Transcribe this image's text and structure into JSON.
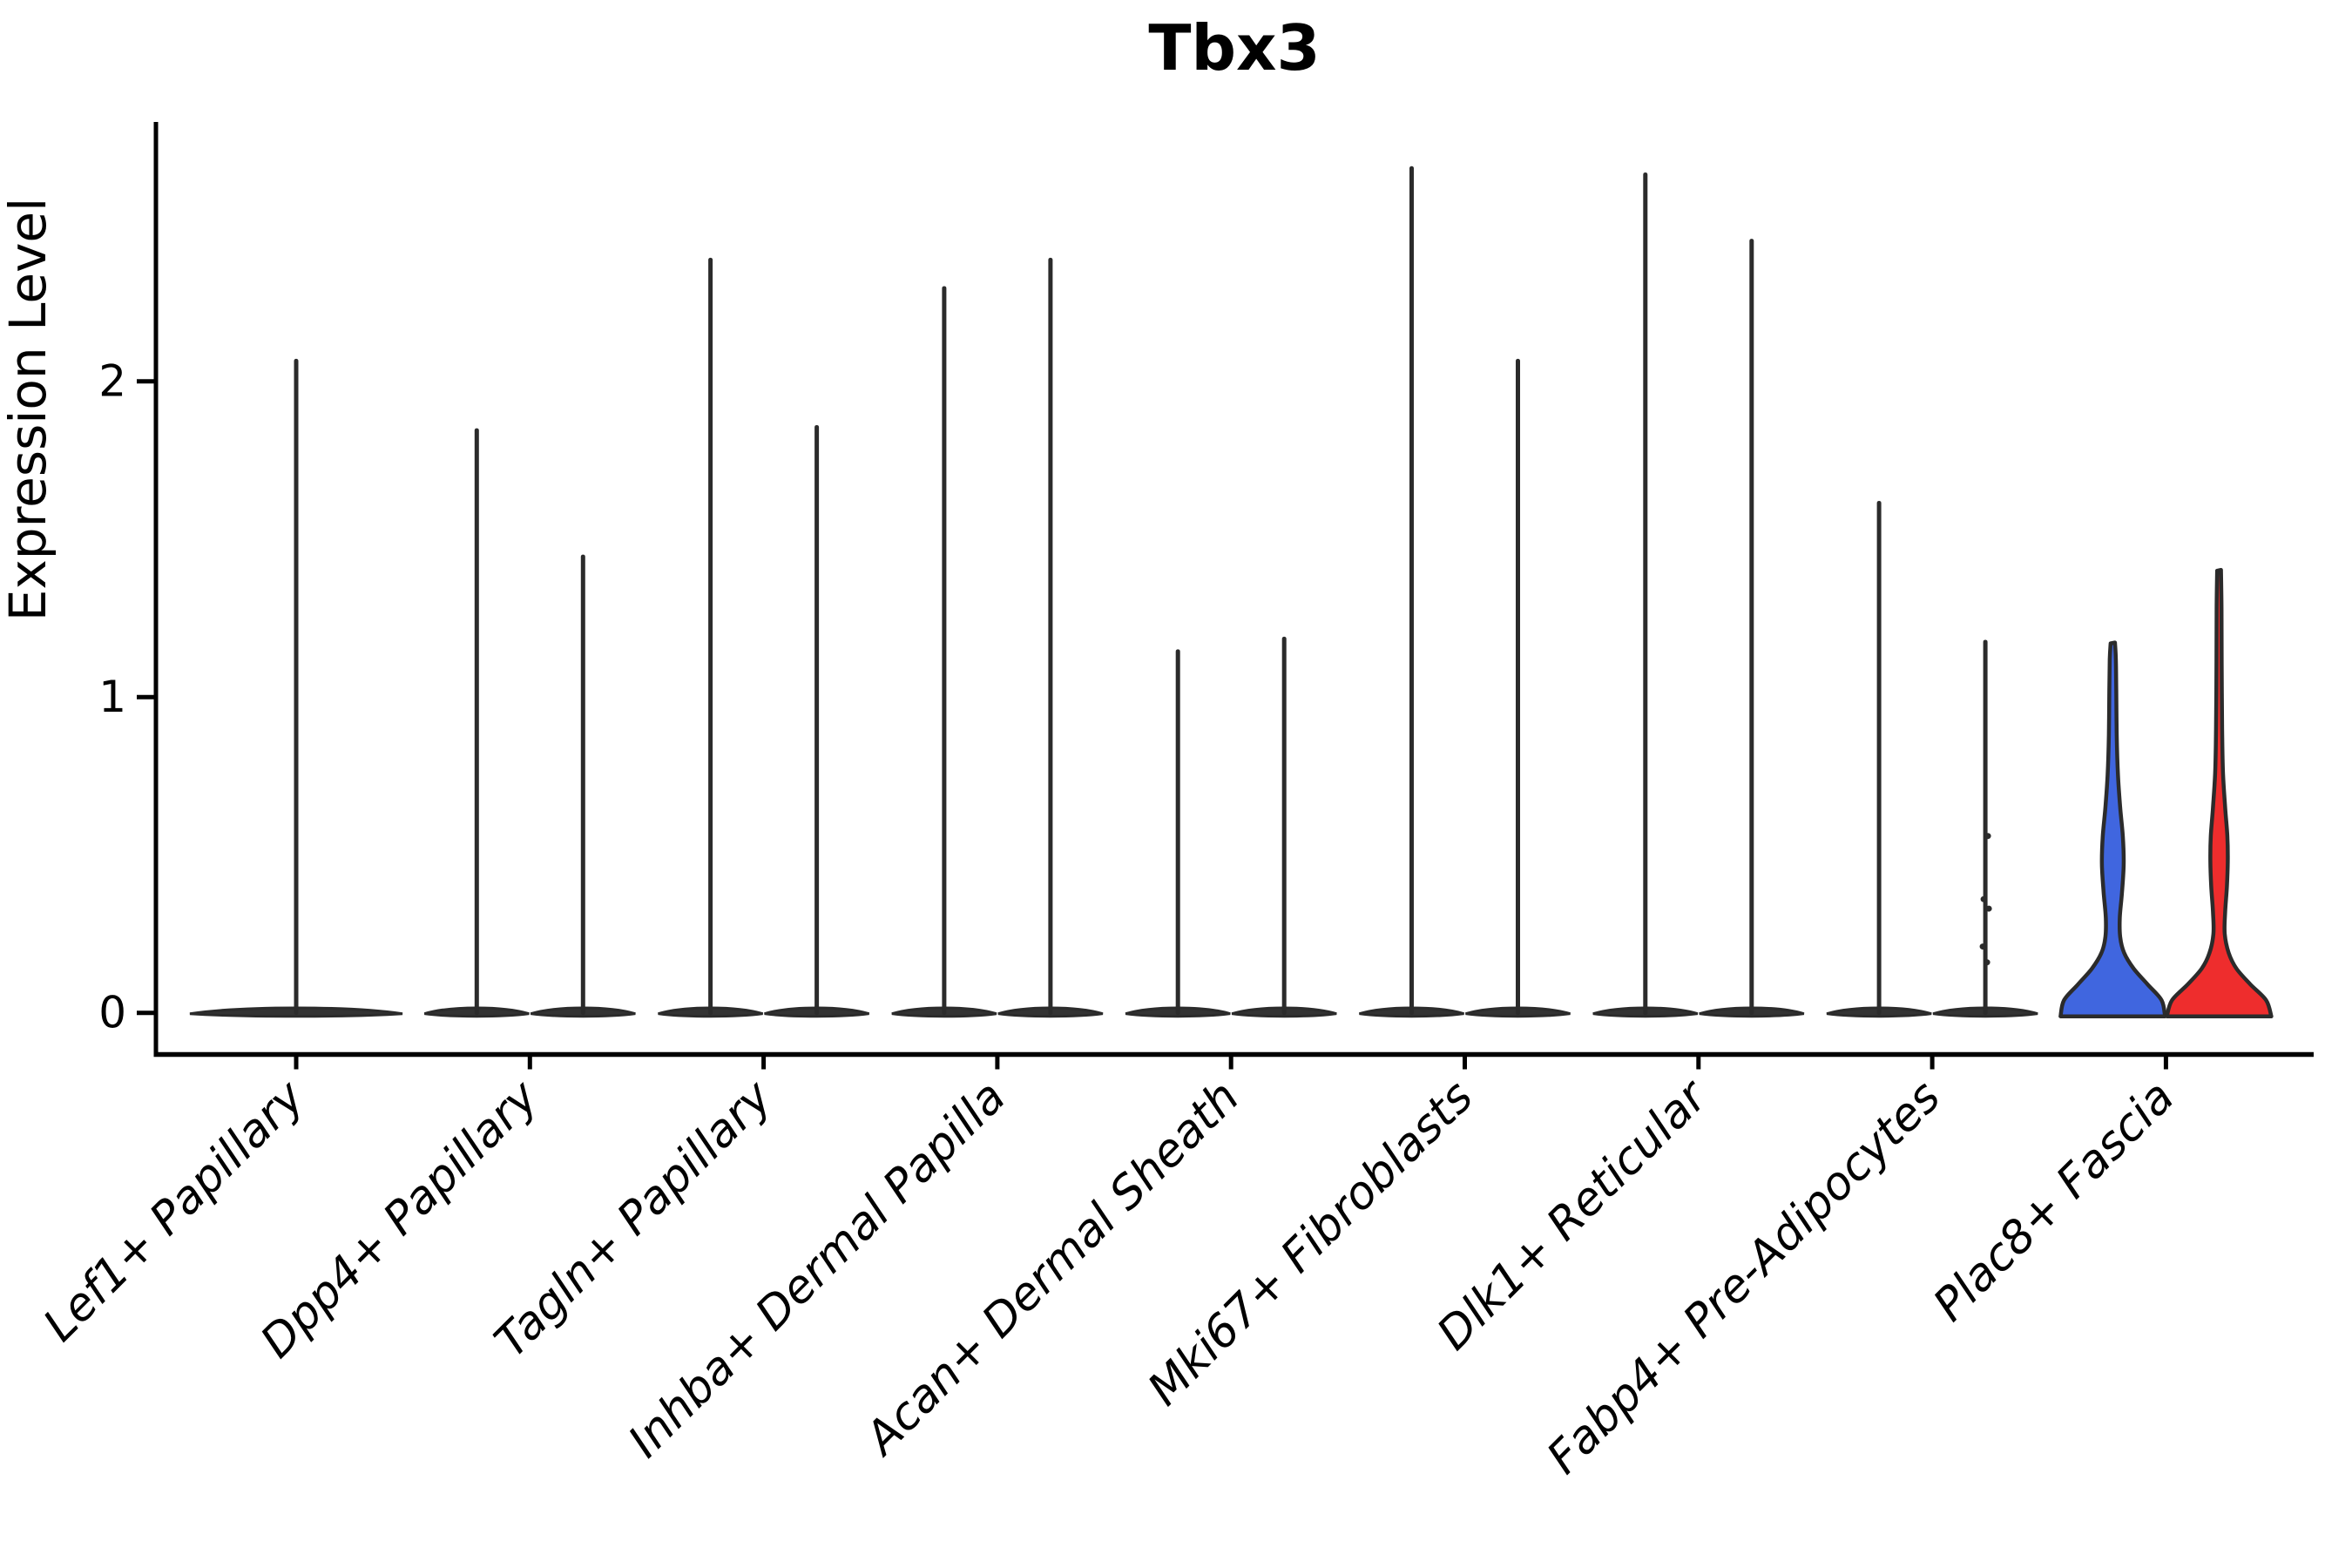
{
  "title": "Tbx3",
  "y_axis": {
    "label": "Expression Level",
    "tick_labels": [
      "0",
      "1",
      "2"
    ]
  },
  "chart_data": {
    "type": "violin",
    "title": "Tbx3",
    "xlabel": "",
    "ylabel": "Expression Level",
    "ylim": [
      0,
      2.82
    ],
    "yticks": [
      0,
      1,
      2
    ],
    "grid": false,
    "legend_position": "none",
    "outline_color": "#2b2b2b",
    "axis_color": "#000000",
    "highlight_colors": {
      "group1": "#4066DF",
      "group2": "#EE2D2D"
    },
    "categories": [
      {
        "label": "Lef1+ Papillary",
        "violins": [
          {
            "group": "all",
            "shape": "spike",
            "width": "full",
            "max_expression": 2.07,
            "fill": "none"
          }
        ]
      },
      {
        "label": "Dpp4+ Papillary",
        "violins": [
          {
            "group": 1,
            "shape": "spike",
            "max_expression": 1.85,
            "fill": "none"
          },
          {
            "group": 2,
            "shape": "spike",
            "max_expression": 1.45,
            "fill": "none"
          }
        ]
      },
      {
        "label": "Tagln+ Papillary",
        "violins": [
          {
            "group": 1,
            "shape": "spike",
            "max_expression": 2.39,
            "fill": "none"
          },
          {
            "group": 2,
            "shape": "spike",
            "max_expression": 1.86,
            "fill": "none"
          }
        ]
      },
      {
        "label": "Inhba+ Dermal Papilla",
        "violins": [
          {
            "group": 1,
            "shape": "spike",
            "max_expression": 2.3,
            "fill": "none"
          },
          {
            "group": 2,
            "shape": "spike",
            "max_expression": 2.39,
            "fill": "none"
          }
        ]
      },
      {
        "label": "Acan+ Dermal Sheath",
        "violins": [
          {
            "group": 1,
            "shape": "spike",
            "max_expression": 1.15,
            "fill": "none"
          },
          {
            "group": 2,
            "shape": "spike",
            "max_expression": 1.19,
            "fill": "none"
          }
        ]
      },
      {
        "label": "Mki67+ Fibroblasts",
        "violins": [
          {
            "group": 1,
            "shape": "spike",
            "max_expression": 2.68,
            "fill": "none"
          },
          {
            "group": 2,
            "shape": "spike",
            "max_expression": 2.07,
            "fill": "none"
          }
        ]
      },
      {
        "label": "Dlk1+ Reticular",
        "violins": [
          {
            "group": 1,
            "shape": "spike",
            "max_expression": 2.66,
            "fill": "none"
          },
          {
            "group": 2,
            "shape": "spike",
            "max_expression": 2.45,
            "fill": "none"
          }
        ]
      },
      {
        "label": "Fabp4+ Pre-Adipocytes",
        "violins": [
          {
            "group": 1,
            "shape": "spike",
            "max_expression": 1.62,
            "fill": "none"
          },
          {
            "group": 2,
            "shape": "spike",
            "max_expression": 1.18,
            "fill": "none",
            "points": [
              0.56,
              0.36,
              0.33,
              0.21,
              0.16
            ]
          }
        ]
      },
      {
        "label": "Plac8+ Fascia",
        "violins": [
          {
            "group": 1,
            "shape": "bell",
            "max_expression": 1.17,
            "fill": "#4066DF",
            "profile": [
              [
                0,
                60
              ],
              [
                0.04,
                56
              ],
              [
                0.09,
                40
              ],
              [
                0.14,
                24
              ],
              [
                0.19,
                13
              ],
              [
                0.24,
                8.5
              ],
              [
                0.3,
                8
              ],
              [
                0.38,
                10.5
              ],
              [
                0.47,
                12.5
              ],
              [
                0.56,
                11.5
              ],
              [
                0.65,
                8.5
              ],
              [
                0.75,
                6
              ],
              [
                0.88,
                4.5
              ],
              [
                1.02,
                4
              ],
              [
                1.12,
                3.5
              ],
              [
                1.17,
                2.5
              ]
            ]
          },
          {
            "group": 2,
            "shape": "bell",
            "max_expression": 1.4,
            "fill": "#EE2D2D",
            "profile": [
              [
                0,
                60
              ],
              [
                0.04,
                54
              ],
              [
                0.09,
                36
              ],
              [
                0.14,
                20
              ],
              [
                0.19,
                11
              ],
              [
                0.25,
                6.5
              ],
              [
                0.32,
                7
              ],
              [
                0.4,
                9
              ],
              [
                0.48,
                10
              ],
              [
                0.56,
                9.5
              ],
              [
                0.65,
                7
              ],
              [
                0.76,
                4.5
              ],
              [
                0.9,
                3.5
              ],
              [
                1.1,
                3
              ],
              [
                1.28,
                2.8
              ],
              [
                1.4,
                2.2
              ]
            ]
          }
        ]
      }
    ]
  }
}
